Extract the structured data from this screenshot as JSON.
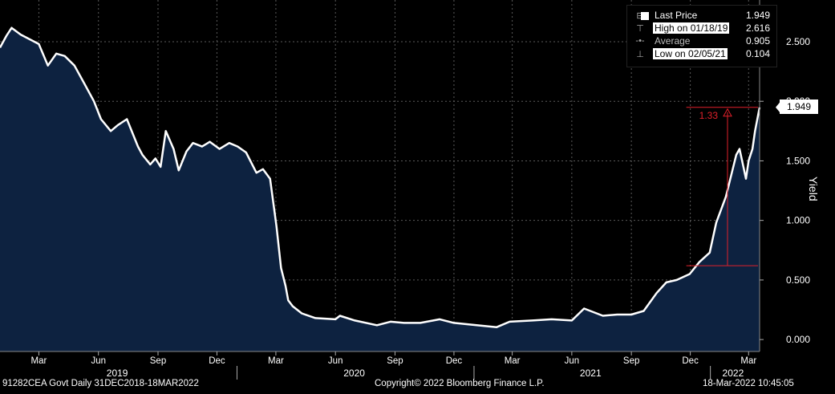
{
  "chart_data": {
    "type": "area",
    "ylabel": "Yield",
    "ylim": [
      -0.1,
      2.85
    ],
    "yticks": [
      0.0,
      0.5,
      1.0,
      1.5,
      2.0,
      2.5
    ],
    "ytick_labels": [
      "0.000",
      "0.500",
      "1.000",
      "1.500",
      "2.000",
      "2.500"
    ],
    "xlim": [
      "2018-12-31",
      "2022-03-18"
    ],
    "month_ticks": [
      {
        "date": "2019-03-01",
        "label": "Mar"
      },
      {
        "date": "2019-06-01",
        "label": "Jun"
      },
      {
        "date": "2019-09-01",
        "label": "Sep"
      },
      {
        "date": "2019-12-01",
        "label": "Dec"
      },
      {
        "date": "2020-03-01",
        "label": "Mar"
      },
      {
        "date": "2020-06-01",
        "label": "Jun"
      },
      {
        "date": "2020-09-01",
        "label": "Sep"
      },
      {
        "date": "2020-12-01",
        "label": "Dec"
      },
      {
        "date": "2021-03-01",
        "label": "Mar"
      },
      {
        "date": "2021-06-01",
        "label": "Jun"
      },
      {
        "date": "2021-09-01",
        "label": "Sep"
      },
      {
        "date": "2021-12-01",
        "label": "Dec"
      },
      {
        "date": "2022-03-01",
        "label": "Mar"
      }
    ],
    "year_labels": [
      {
        "date": "2019-06-30",
        "label": "2019"
      },
      {
        "date": "2020-06-30",
        "label": "2020"
      },
      {
        "date": "2021-06-30",
        "label": "2021"
      },
      {
        "date": "2022-02-05",
        "label": "2022"
      }
    ],
    "year_dividers": [
      "2020-01-01",
      "2021-01-01",
      "2022-01-01"
    ],
    "grid": true,
    "legend_position": "top-right",
    "colors": {
      "area": "#0d2240",
      "line": "#ffffff",
      "grid": "#5a5a5a",
      "annotation": "#e0202a"
    },
    "series": [
      {
        "x": [
          "2018-12-31",
          "2019-01-10",
          "2019-01-18",
          "2019-02-01",
          "2019-02-15",
          "2019-03-01",
          "2019-03-15",
          "2019-03-28",
          "2019-04-10",
          "2019-04-25",
          "2019-05-10",
          "2019-05-25",
          "2019-06-05",
          "2019-06-20",
          "2019-07-01",
          "2019-07-15",
          "2019-08-01",
          "2019-08-08",
          "2019-08-20",
          "2019-08-28",
          "2019-09-05",
          "2019-09-13",
          "2019-09-25",
          "2019-10-03",
          "2019-10-15",
          "2019-10-25",
          "2019-11-08",
          "2019-11-20",
          "2019-12-05",
          "2019-12-20",
          "2020-01-02",
          "2020-01-15",
          "2020-01-31",
          "2020-02-10",
          "2020-02-21",
          "2020-03-02",
          "2020-03-09",
          "2020-03-16",
          "2020-03-20",
          "2020-03-27",
          "2020-04-10",
          "2020-05-01",
          "2020-06-01",
          "2020-06-08",
          "2020-07-01",
          "2020-08-04",
          "2020-08-25",
          "2020-09-15",
          "2020-10-10",
          "2020-11-09",
          "2020-12-01",
          "2021-01-05",
          "2021-02-05",
          "2021-02-25",
          "2021-04-01",
          "2021-05-01",
          "2021-06-01",
          "2021-06-20",
          "2021-07-19",
          "2021-08-10",
          "2021-09-01",
          "2021-09-20",
          "2021-10-10",
          "2021-10-25",
          "2021-11-10",
          "2021-11-30",
          "2021-12-15",
          "2021-12-31",
          "2022-01-10",
          "2022-01-25",
          "2022-02-10",
          "2022-02-15",
          "2022-02-25",
          "2022-03-01",
          "2022-03-07",
          "2022-03-11",
          "2022-03-18"
        ],
        "values": [
          2.45,
          2.55,
          2.616,
          2.56,
          2.52,
          2.48,
          2.3,
          2.4,
          2.38,
          2.3,
          2.15,
          2.0,
          1.85,
          1.75,
          1.8,
          1.85,
          1.62,
          1.55,
          1.47,
          1.52,
          1.45,
          1.75,
          1.6,
          1.42,
          1.58,
          1.65,
          1.62,
          1.66,
          1.6,
          1.65,
          1.62,
          1.57,
          1.4,
          1.43,
          1.35,
          0.95,
          0.6,
          0.45,
          0.33,
          0.28,
          0.22,
          0.18,
          0.17,
          0.2,
          0.16,
          0.12,
          0.15,
          0.14,
          0.14,
          0.17,
          0.14,
          0.12,
          0.104,
          0.15,
          0.16,
          0.17,
          0.16,
          0.26,
          0.2,
          0.21,
          0.21,
          0.24,
          0.39,
          0.48,
          0.5,
          0.55,
          0.65,
          0.73,
          0.98,
          1.2,
          1.55,
          1.6,
          1.35,
          1.5,
          1.6,
          1.75,
          1.949
        ]
      }
    ],
    "legend": [
      {
        "label": "Last Price",
        "value": "1.949"
      },
      {
        "label": "High on 01/18/19",
        "value": "2.616"
      },
      {
        "label": "Average",
        "value": "0.905"
      },
      {
        "label": "Low on 02/05/21",
        "value": "0.104"
      }
    ],
    "last_price_tag": "1.949",
    "annotation": {
      "label": "1.33",
      "from_value": 0.62,
      "to_value": 1.949,
      "from_date": "2021-12-01",
      "to_date": "2022-03-18"
    }
  },
  "footer": {
    "left": "91282CEA Govt  Daily 31DEC2018-18MAR2022",
    "center": "Copyright© 2022 Bloomberg Finance L.P.",
    "right": "18-Mar-2022 10:45:05"
  }
}
